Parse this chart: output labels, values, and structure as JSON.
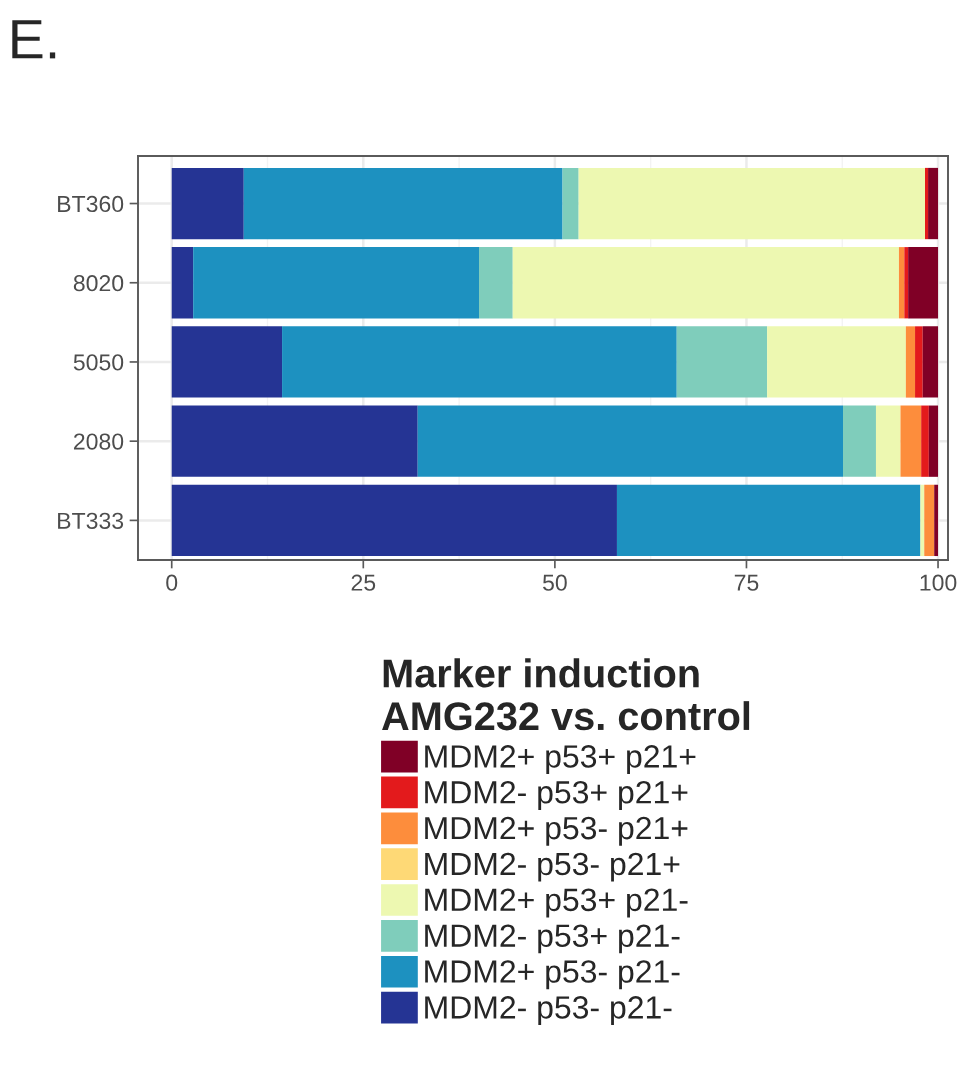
{
  "chart_data": {
    "type": "bar",
    "title": "E.",
    "orientation": "horizontal",
    "stacked": true,
    "categories": [
      "BT360",
      "8020",
      "5050",
      "2080",
      "BT333"
    ],
    "series": [
      {
        "name": "MDM2- p53- p21-",
        "color": "#253494",
        "values": [
          9.4,
          2.8,
          14.4,
          32.1,
          58.1
        ]
      },
      {
        "name": "MDM2+ p53- p21-",
        "color": "#1d91c0",
        "values": [
          41.6,
          37.3,
          51.5,
          55.5,
          39.6
        ]
      },
      {
        "name": "MDM2- p53+ p21-",
        "color": "#7fcdbb",
        "values": [
          2.1,
          4.4,
          11.8,
          4.3,
          0
        ]
      },
      {
        "name": "MDM2+ p53+ p21-",
        "color": "#edf8b1",
        "values": [
          45.2,
          50.4,
          18.1,
          3.2,
          0.5
        ]
      },
      {
        "name": "MDM2- p53- p21+",
        "color": "#fed976",
        "values": [
          0,
          0,
          0,
          0,
          0
        ]
      },
      {
        "name": "MDM2+ p53- p21+",
        "color": "#fd8d3c",
        "values": [
          0,
          0.7,
          1.2,
          2.7,
          1.3
        ]
      },
      {
        "name": "MDM2- p53+ p21+",
        "color": "#e31a1c",
        "values": [
          0.4,
          0.5,
          1.0,
          1.0,
          0
        ]
      },
      {
        "name": "MDM2+ p53+ p21+",
        "color": "#800026",
        "values": [
          1.3,
          3.9,
          2.0,
          1.2,
          0.5
        ]
      }
    ],
    "xlim": [
      -4.4,
      101.3
    ],
    "xticks": [
      0,
      25,
      50,
      75,
      100
    ],
    "grid": true,
    "legend": "bottom",
    "legend_title": "Marker induction\nAMG232 vs. control"
  }
}
